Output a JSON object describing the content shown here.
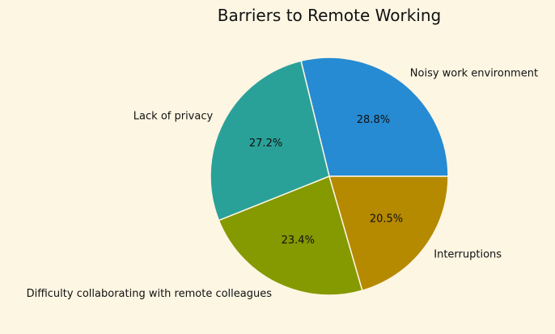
{
  "chart_data": {
    "type": "pie",
    "title": "Barriers to Remote Working",
    "categories": [
      "Noisy work environment",
      "Lack of privacy",
      "Difficulty collaborating with remote colleagues",
      "Interruptions"
    ],
    "values": [
      28.8,
      27.2,
      23.4,
      20.5
    ],
    "value_labels": [
      "28.8%",
      "27.2%",
      "23.4%",
      "20.5%"
    ],
    "colors": [
      "#268bd2",
      "#2aa198",
      "#859900",
      "#b58900"
    ],
    "start_angle_deg": 0,
    "direction": "counterclockwise",
    "legend": "none"
  }
}
